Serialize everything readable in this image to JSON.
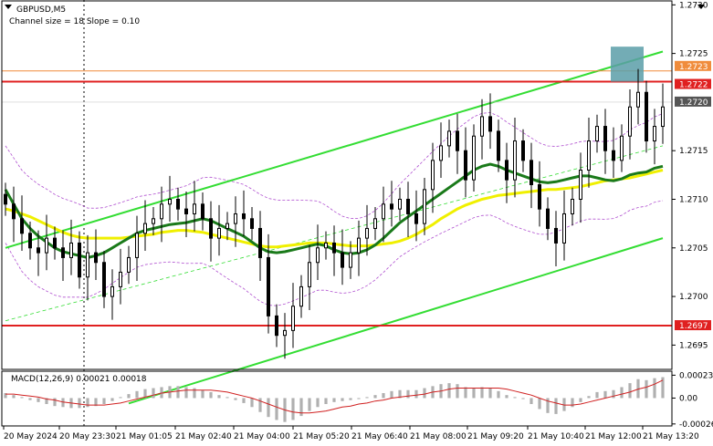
{
  "chart_data": [
    {
      "type": "line",
      "title": "GBPUSD,M5",
      "subtitle": "Channel size = 18 Slope = 0.10",
      "symbol": "GBPUSD",
      "timeframe": "M5",
      "ylim": [
        1.26925,
        1.27305
      ],
      "y_ticks": [
        "1.2730",
        "1.2725",
        "1.2715",
        "1.2710",
        "1.2705",
        "1.2700",
        "1.2695"
      ],
      "x_labels": [
        "20 May 2024",
        "20 May 23:30",
        "21 May 01:05",
        "21 May 02:40",
        "21 May 04:00",
        "21 May 05:20",
        "21 May 06:40",
        "21 May 08:00",
        "21 May 09:20",
        "21 May 10:40",
        "21 May 12:00",
        "21 May 13:20"
      ],
      "price_levels": [
        {
          "label": "1.2723",
          "value": 1.27232,
          "color": "#f08c3c"
        },
        {
          "label": "1.2722",
          "value": 1.27221,
          "color": "#e02020"
        },
        {
          "label": "1.2720",
          "value": 1.272,
          "color": "#555555"
        },
        {
          "label": "1.2697",
          "value": 1.2697,
          "color": "#e02020"
        }
      ],
      "candles_close": [
        1.27095,
        1.2708,
        1.27065,
        1.2705,
        1.27045,
        1.2706,
        1.2705,
        1.2704,
        1.27055,
        1.2702,
        1.27045,
        1.27035,
        1.27,
        1.2701,
        1.27025,
        1.2704,
        1.27065,
        1.27075,
        1.2708,
        1.27095,
        1.271,
        1.2709,
        1.27085,
        1.27095,
        1.2708,
        1.2706,
        1.2707,
        1.27075,
        1.27085,
        1.2708,
        1.2707,
        1.2704,
        1.2698,
        1.2696,
        1.26965,
        1.2699,
        1.2701,
        1.27035,
        1.2705,
        1.27055,
        1.27045,
        1.2703,
        1.27045,
        1.2706,
        1.2707,
        1.2708,
        1.27095,
        1.2709,
        1.271,
        1.27085,
        1.27075,
        1.2711,
        1.2714,
        1.27155,
        1.2717,
        1.2715,
        1.2712,
        1.27165,
        1.27185,
        1.2717,
        1.2714,
        1.2712,
        1.2716,
        1.2714,
        1.27115,
        1.2709,
        1.2707,
        1.27055,
        1.27085,
        1.271,
        1.2713,
        1.2716,
        1.27175,
        1.2715,
        1.2714,
        1.27165,
        1.27195,
        1.2721,
        1.2716,
        1.27175,
        1.27195
      ],
      "candles_open": [
        1.27105,
        1.27095,
        1.2708,
        1.27065,
        1.2705,
        1.27045,
        1.2706,
        1.2705,
        1.2704,
        1.27055,
        1.2702,
        1.27045,
        1.27035,
        1.27,
        1.2701,
        1.27025,
        1.2704,
        1.27065,
        1.27075,
        1.2708,
        1.27095,
        1.271,
        1.2709,
        1.27085,
        1.27095,
        1.2708,
        1.2706,
        1.2707,
        1.27075,
        1.27085,
        1.2708,
        1.2707,
        1.2704,
        1.2698,
        1.2696,
        1.26965,
        1.2699,
        1.2701,
        1.27035,
        1.2705,
        1.27055,
        1.27045,
        1.2703,
        1.27045,
        1.2706,
        1.2707,
        1.2708,
        1.27095,
        1.2709,
        1.271,
        1.27085,
        1.27075,
        1.2711,
        1.2714,
        1.27155,
        1.2717,
        1.2715,
        1.2712,
        1.27165,
        1.27185,
        1.2717,
        1.2714,
        1.2712,
        1.2716,
        1.2714,
        1.27115,
        1.2709,
        1.2707,
        1.27055,
        1.27085,
        1.271,
        1.2713,
        1.2716,
        1.27175,
        1.2715,
        1.2714,
        1.27165,
        1.27195,
        1.2721,
        1.2716,
        1.27175
      ],
      "ma_green": [
        1.2711,
        1.27095,
        1.2708,
        1.2707,
        1.27062,
        1.27056,
        1.2705,
        1.27046,
        1.27044,
        1.27042,
        1.2704,
        1.27042,
        1.27045,
        1.2705,
        1.27055,
        1.2706,
        1.27065,
        1.27068,
        1.2707,
        1.27072,
        1.27074,
        1.27075,
        1.27076,
        1.27078,
        1.2708,
        1.27078,
        1.27074,
        1.2707,
        1.27066,
        1.27062,
        1.27056,
        1.2705,
        1.27046,
        1.27045,
        1.27046,
        1.27048,
        1.2705,
        1.27052,
        1.27054,
        1.27052,
        1.27048,
        1.27045,
        1.27044,
        1.27045,
        1.27048,
        1.27053,
        1.2706,
        1.27068,
        1.27076,
        1.27082,
        1.27088,
        1.27094,
        1.271,
        1.27106,
        1.27112,
        1.27118,
        1.27124,
        1.2713,
        1.27134,
        1.27136,
        1.27134,
        1.2713,
        1.27127,
        1.27124,
        1.27121,
        1.27118,
        1.27117,
        1.27118,
        1.2712,
        1.27122,
        1.27124,
        1.27124,
        1.27122,
        1.2712,
        1.27119,
        1.27121,
        1.27125,
        1.27127,
        1.27128,
        1.27132,
        1.27134
      ],
      "ma_yellow": [
        1.2709,
        1.27088,
        1.27085,
        1.27082,
        1.27078,
        1.27074,
        1.2707,
        1.27066,
        1.27063,
        1.27061,
        1.2706,
        1.2706,
        1.2706,
        1.2706,
        1.2706,
        1.27061,
        1.27062,
        1.27063,
        1.27064,
        1.27066,
        1.27067,
        1.27068,
        1.27068,
        1.27067,
        1.27066,
        1.27064,
        1.27062,
        1.2706,
        1.27058,
        1.27056,
        1.27054,
        1.27052,
        1.27051,
        1.27051,
        1.27052,
        1.27053,
        1.27054,
        1.27055,
        1.27055,
        1.27055,
        1.27054,
        1.27053,
        1.27052,
        1.27052,
        1.27052,
        1.27053,
        1.27054,
        1.27055,
        1.27057,
        1.2706,
        1.27064,
        1.27069,
        1.27074,
        1.2708,
        1.27085,
        1.2709,
        1.27094,
        1.27097,
        1.271,
        1.27102,
        1.27104,
        1.27105,
        1.27106,
        1.27107,
        1.27108,
        1.27109,
        1.2711,
        1.2711,
        1.27111,
        1.27112,
        1.27113,
        1.27115,
        1.27117,
        1.27119,
        1.2712,
        1.27121,
        1.27122,
        1.27124,
        1.27126,
        1.27128,
        1.2713
      ],
      "trend_lines": [
        {
          "name": "upper",
          "from": [
            0,
            1.2705
          ],
          "to": [
            80,
            1.27252
          ]
        },
        {
          "name": "lower",
          "from": [
            15,
            1.2689
          ],
          "to": [
            80,
            1.2706
          ]
        },
        {
          "name": "mid",
          "from": [
            0,
            1.26975
          ],
          "to": [
            80,
            1.27155
          ]
        }
      ]
    },
    {
      "type": "bar",
      "title": "MACD(12,26,9) 0.00021 0.00018",
      "ylim": [
        -0.00028,
        0.00027
      ],
      "y_ticks": [
        "0.00023",
        "0.00",
        "-0.00026"
      ],
      "histogram": [
        5e-05,
        3e-05,
        1e-05,
        -2e-05,
        -4e-05,
        -6e-05,
        -8e-05,
        -9e-05,
        -0.0001,
        -0.0001,
        -9e-05,
        -8e-05,
        -6e-05,
        -3e-05,
        1e-05,
        4e-05,
        7e-05,
        9e-05,
        0.0001,
        0.00011,
        0.00012,
        0.00012,
        0.00011,
        0.0001,
        8e-05,
        6e-05,
        3e-05,
        1e-05,
        -2e-05,
        -5e-05,
        -9e-05,
        -0.00014,
        -0.00019,
        -0.00022,
        -0.00024,
        -0.00022,
        -0.00018,
        -0.00013,
        -9e-05,
        -6e-05,
        -4e-05,
        -3e-05,
        -2e-05,
        -1e-05,
        1e-05,
        3e-05,
        5e-05,
        7e-05,
        8e-05,
        8e-05,
        8e-05,
        0.0001,
        0.00012,
        0.00014,
        0.00015,
        0.00014,
        0.00011,
        0.0001,
        0.00011,
        0.0001,
        7e-05,
        3e-05,
        1e-05,
        -1e-05,
        -6e-05,
        -0.00011,
        -0.00015,
        -0.00016,
        -0.00013,
        -9e-05,
        -4e-05,
        2e-05,
        6e-05,
        7e-05,
        8e-05,
        0.00011,
        0.00015,
        0.00019,
        0.00018,
        0.0002,
        0.00021
      ],
      "signal": [
        4e-05,
        4e-05,
        3e-05,
        2e-05,
        1e-05,
        -1e-05,
        -2e-05,
        -4e-05,
        -5e-05,
        -6e-05,
        -7e-05,
        -7e-05,
        -7e-05,
        -6e-05,
        -5e-05,
        -3e-05,
        -1e-05,
        1e-05,
        3e-05,
        5e-05,
        6e-05,
        7e-05,
        8e-05,
        8e-05,
        8e-05,
        8e-05,
        7e-05,
        6e-05,
        4e-05,
        2e-05,
        0.0,
        -3e-05,
        -6e-05,
        -9e-05,
        -0.00012,
        -0.00014,
        -0.00015,
        -0.00015,
        -0.00014,
        -0.00013,
        -0.00011,
        -9e-05,
        -8e-05,
        -6e-05,
        -5e-05,
        -3e-05,
        -2e-05,
        0.0,
        1e-05,
        2e-05,
        3e-05,
        4e-05,
        6e-05,
        7e-05,
        9e-05,
        0.0001,
        0.0001,
        0.0001,
        0.0001,
        0.0001,
        0.0001,
        9e-05,
        7e-05,
        5e-05,
        3e-05,
        0.0,
        -3e-05,
        -5e-05,
        -7e-05,
        -7e-05,
        -6e-05,
        -4e-05,
        -2e-05,
        0.0,
        2e-05,
        4e-05,
        6e-05,
        9e-05,
        0.00011,
        0.00014,
        0.00018
      ]
    }
  ],
  "header": {
    "symbol_label": "GBPUSD,M5",
    "channel_label": "Channel size = 18 Slope = 0.10"
  },
  "macd_label": "MACD(12,26,9) 0.00021 0.00018",
  "colors": {
    "up_candle": "#000000",
    "down_candle": "#000000",
    "ma_green": "#1a7a1a",
    "ma_yellow": "#f0f000",
    "trend_line": "#33dd33",
    "resistance": "#e02020",
    "support": "#e02020",
    "highlight_box": "#5a9ea8",
    "macd_hist": "#b0b0b0",
    "macd_signal": "#d02020"
  }
}
